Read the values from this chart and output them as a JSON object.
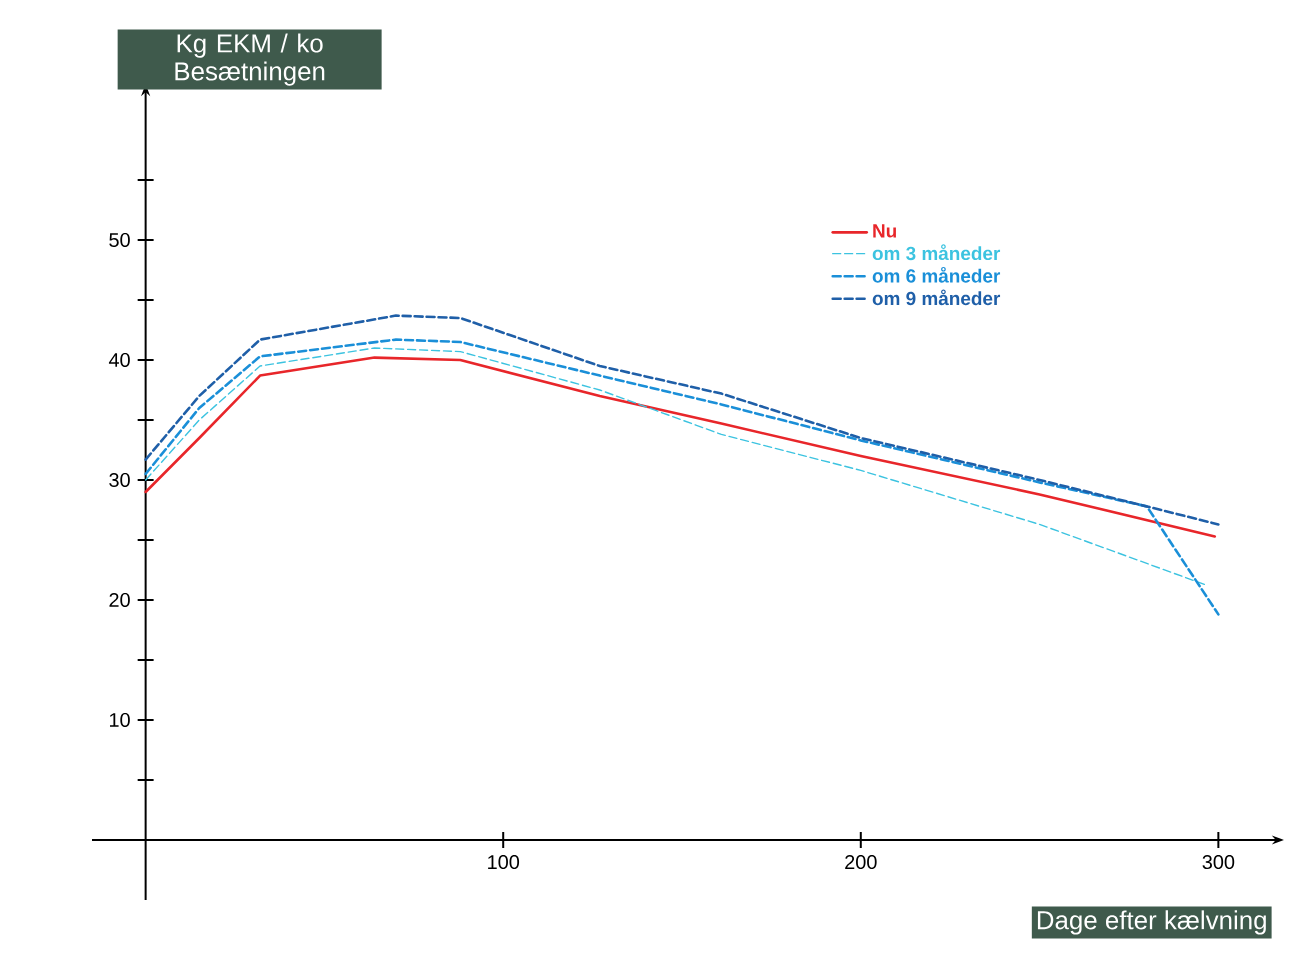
{
  "chart_data": {
    "type": "line",
    "xlabel": "Dage efter kælvning",
    "ylabel": "Kg EKM / ko Besætningen",
    "xlim": [
      -15,
      315
    ],
    "ylim": [
      -5,
      62
    ],
    "xticks": [
      100,
      200,
      300
    ],
    "yticks": [
      {
        "value": 5,
        "label": null
      },
      10,
      {
        "value": 15,
        "label": null
      },
      20,
      {
        "value": 25,
        "label": null
      },
      30,
      {
        "value": 35,
        "label": null
      },
      40,
      {
        "value": 45,
        "label": null
      },
      50,
      {
        "value": 55,
        "label": null
      }
    ],
    "grid": false,
    "legend": "top right",
    "marker": "none",
    "series": [
      {
        "name": "Nu",
        "color": "#e8262a",
        "line_style": "solid",
        "x": [
          0,
          15,
          32,
          64,
          88,
          127,
          161,
          200,
          250,
          299
        ],
        "values": [
          29,
          33.5,
          38.7,
          40.2,
          40,
          37,
          34.7,
          32,
          28.8,
          25.3
        ]
      },
      {
        "name": "om 3 måneder",
        "color": "#3cc3e0",
        "line_style": "dashed",
        "x": [
          0,
          15,
          32,
          64,
          88,
          127,
          161,
          200,
          250,
          297
        ],
        "values": [
          30,
          35,
          39.5,
          41,
          40.7,
          37.5,
          33.8,
          30.8,
          26.3,
          21.2
        ]
      },
      {
        "name": "om 6 måneder",
        "color": "#1a8fd8",
        "line_style": "dashed",
        "x": [
          0,
          15,
          32,
          70,
          88,
          127,
          161,
          200,
          250,
          280,
          290,
          300
        ],
        "values": [
          30.5,
          36,
          40.3,
          41.7,
          41.5,
          38.7,
          36.3,
          33.3,
          29.8,
          27.8,
          23.3,
          18.8
        ]
      },
      {
        "name": "om 9 måneder",
        "color": "#1f5fa8",
        "line_style": "dashed",
        "x": [
          0,
          15,
          32,
          70,
          88,
          127,
          161,
          200,
          250,
          280,
          300
        ],
        "values": [
          31.7,
          37,
          41.7,
          43.7,
          43.5,
          39.5,
          37.2,
          33.5,
          30,
          27.8,
          26.3
        ]
      }
    ]
  }
}
